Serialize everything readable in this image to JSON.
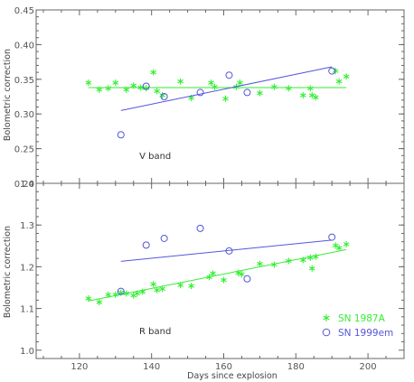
{
  "chart_data": {
    "type": "scatter",
    "x_label": "Days since explosion",
    "xlim": [
      108,
      210
    ],
    "x_ticks": [
      "120",
      "140",
      "160",
      "180",
      "200"
    ],
    "colors": {
      "sn1987a": "#33ee33",
      "sn1999em": "#5555dd"
    },
    "legend": {
      "placement": "bottom-right",
      "entries": [
        {
          "marker": "asterisk",
          "label": "SN 1987A",
          "color": "#33ee33"
        },
        {
          "marker": "circle",
          "label": "SN 1999em",
          "color": "#5555dd"
        }
      ]
    },
    "panels": [
      {
        "ylabel": "Bolometric correction",
        "band_label": "V band",
        "ylim": [
          0.2,
          0.45
        ],
        "y_ticks": [
          "0.20",
          "0.25",
          "0.30",
          "0.35",
          "0.40",
          "0.45"
        ],
        "series": [
          {
            "name": "SN 1987A",
            "marker": "asterisk",
            "points": [
              [
                122.5,
                0.345
              ],
              [
                125.5,
                0.335
              ],
              [
                128,
                0.337
              ],
              [
                130,
                0.345
              ],
              [
                133,
                0.335
              ],
              [
                135,
                0.341
              ],
              [
                137,
                0.338
              ],
              [
                138.5,
                0.337
              ],
              [
                140.5,
                0.36
              ],
              [
                141.5,
                0.333
              ],
              [
                143,
                0.327
              ],
              [
                148,
                0.347
              ],
              [
                151,
                0.323
              ],
              [
                156.5,
                0.345
              ],
              [
                157.5,
                0.339
              ],
              [
                160.5,
                0.322
              ],
              [
                163.5,
                0.339
              ],
              [
                164.5,
                0.345
              ],
              [
                170,
                0.33
              ],
              [
                174,
                0.339
              ],
              [
                178,
                0.337
              ],
              [
                182,
                0.327
              ],
              [
                184,
                0.337
              ],
              [
                184.5,
                0.327
              ],
              [
                185.5,
                0.324
              ],
              [
                191,
                0.362
              ],
              [
                192,
                0.347
              ],
              [
                194,
                0.354
              ]
            ],
            "fit": [
              [
                122.5,
                0.338
              ],
              [
                194,
                0.338
              ]
            ]
          },
          {
            "name": "SN 1999em",
            "marker": "circle",
            "points": [
              [
                131.5,
                0.27
              ],
              [
                138.5,
                0.34
              ],
              [
                143.5,
                0.325
              ],
              [
                153.5,
                0.331
              ],
              [
                161.5,
                0.356
              ],
              [
                166.5,
                0.331
              ],
              [
                190,
                0.362
              ]
            ],
            "fit": [
              [
                131.5,
                0.305
              ],
              [
                190,
                0.368
              ]
            ]
          }
        ]
      },
      {
        "ylabel": "Bolometric correction",
        "band_label": "R band",
        "ylim": [
          0.98,
          1.4
        ],
        "y_ticks": [
          "1.0",
          "1.1",
          "1.2",
          "1.3",
          "1.4"
        ],
        "series": [
          {
            "name": "SN 1987A",
            "marker": "asterisk",
            "points": [
              [
                122.5,
                1.124
              ],
              [
                125.5,
                1.115
              ],
              [
                128,
                1.133
              ],
              [
                130,
                1.133
              ],
              [
                131.5,
                1.138
              ],
              [
                133,
                1.136
              ],
              [
                135,
                1.131
              ],
              [
                136,
                1.136
              ],
              [
                137.5,
                1.14
              ],
              [
                140.5,
                1.158
              ],
              [
                141.5,
                1.144
              ],
              [
                143,
                1.147
              ],
              [
                148,
                1.156
              ],
              [
                151,
                1.154
              ],
              [
                156,
                1.175
              ],
              [
                157,
                1.184
              ],
              [
                160,
                1.168
              ],
              [
                164,
                1.185
              ],
              [
                165,
                1.182
              ],
              [
                170,
                1.207
              ],
              [
                174,
                1.205
              ],
              [
                178,
                1.214
              ],
              [
                182,
                1.216
              ],
              [
                184,
                1.222
              ],
              [
                184.5,
                1.196
              ],
              [
                185.5,
                1.224
              ],
              [
                191,
                1.251
              ],
              [
                192,
                1.245
              ],
              [
                194,
                1.254
              ]
            ],
            "fit": [
              [
                122.5,
                1.118
              ],
              [
                194,
                1.241
              ]
            ]
          },
          {
            "name": "SN 1999em",
            "marker": "circle",
            "points": [
              [
                131.5,
                1.141
              ],
              [
                138.5,
                1.252
              ],
              [
                143.5,
                1.268
              ],
              [
                153.5,
                1.292
              ],
              [
                161.5,
                1.238
              ],
              [
                166.5,
                1.171
              ],
              [
                190,
                1.271
              ]
            ],
            "fit": [
              [
                131.5,
                1.213
              ],
              [
                190,
                1.264
              ]
            ]
          }
        ]
      }
    ]
  }
}
